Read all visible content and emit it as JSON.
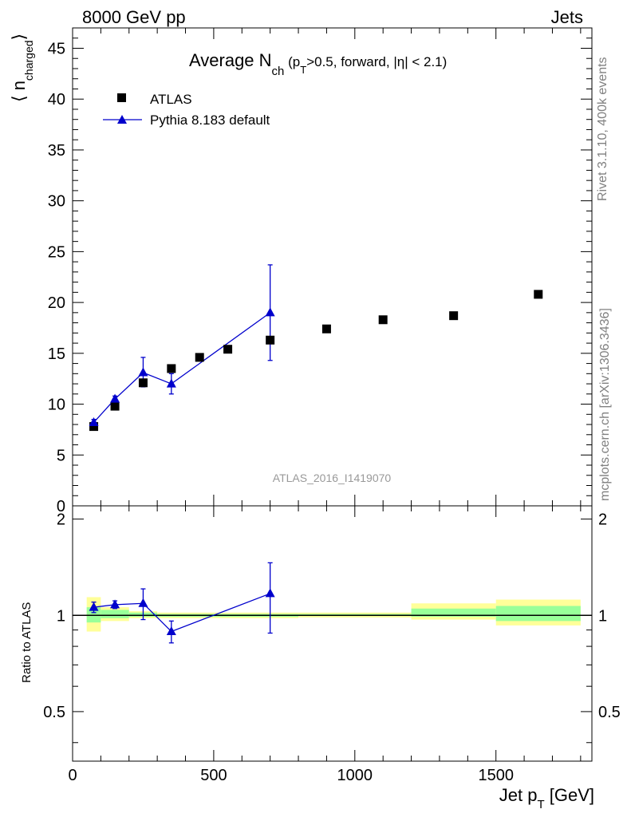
{
  "header": {
    "top_left": "8000 GeV pp",
    "top_right": "Jets",
    "rivet_label": "Rivet 3.1.10,  400k events",
    "mcplots_label": "mcplots.cern.ch [arXiv:1306.3436]",
    "analysis_id": "ATLAS_2016_I1419070"
  },
  "main_plot": {
    "title_main": "Average N",
    "title_sub": "ch",
    "title_rest": " (p",
    "title_rest_sub": "T",
    "title_tail": ">0.5, forward, |η| < 2.1)",
    "ylabel": "⟨ n",
    "ylabel_sub": "charged",
    "ylabel_close": "⟩",
    "ylim": [
      0,
      47
    ],
    "yticks": [
      0,
      5,
      10,
      15,
      20,
      25,
      30,
      35,
      40,
      45
    ],
    "ytick_labels": [
      "0",
      "5",
      "10",
      "15",
      "20",
      "25",
      "30",
      "35",
      "40",
      "45"
    ]
  },
  "ratio_plot": {
    "ylabel": "Ratio to ATLAS",
    "ylim": [
      0.35,
      2.2
    ],
    "yticks": [
      0.5,
      1,
      2
    ],
    "ytick_labels": [
      "0.5",
      "1",
      "2"
    ]
  },
  "xaxis": {
    "label_main": "Jet p",
    "label_sub": "T",
    "label_unit": " [GeV]",
    "xlim": [
      0,
      1840
    ],
    "xticks": [
      0,
      500,
      1000,
      1500
    ],
    "xtick_labels": [
      "0",
      "500",
      "1000",
      "1500"
    ]
  },
  "chart_data": {
    "type": "scatter",
    "title": "Average N_ch (p_T>0.5, forward, |η| < 2.1)",
    "xlabel": "Jet p_T [GeV]",
    "ylabel": "⟨ n_charged ⟩",
    "series": [
      {
        "name": "ATLAS",
        "marker": "square",
        "color": "#000000",
        "points": [
          {
            "x": 75,
            "y": 7.8,
            "xlo": 50,
            "xhi": 100
          },
          {
            "x": 150,
            "y": 9.8,
            "xlo": 100,
            "xhi": 200
          },
          {
            "x": 250,
            "y": 12.1,
            "xlo": 200,
            "xhi": 300
          },
          {
            "x": 350,
            "y": 13.5,
            "xlo": 300,
            "xhi": 400
          },
          {
            "x": 450,
            "y": 14.6,
            "xlo": 400,
            "xhi": 500
          },
          {
            "x": 550,
            "y": 15.4,
            "xlo": 500,
            "xhi": 600
          },
          {
            "x": 700,
            "y": 16.3,
            "xlo": 600,
            "xhi": 800
          },
          {
            "x": 900,
            "y": 17.4,
            "xlo": 800,
            "xhi": 1000
          },
          {
            "x": 1100,
            "y": 18.3,
            "xlo": 1000,
            "xhi": 1200
          },
          {
            "x": 1350,
            "y": 18.7,
            "xlo": 1200,
            "xhi": 1500
          },
          {
            "x": 1650,
            "y": 20.8,
            "xlo": 1500,
            "xhi": 1800
          }
        ]
      },
      {
        "name": "Pythia 8.183 default",
        "marker": "triangle",
        "color": "#0000cc",
        "points": [
          {
            "x": 75,
            "y": 8.2,
            "ylo": 7.9,
            "yhi": 8.5
          },
          {
            "x": 150,
            "y": 10.5,
            "ylo": 10.2,
            "yhi": 10.8
          },
          {
            "x": 250,
            "y": 13.1,
            "ylo": 11.7,
            "yhi": 14.6
          },
          {
            "x": 350,
            "y": 12.0,
            "ylo": 11.0,
            "yhi": 13.0
          },
          {
            "x": 700,
            "y": 19.0,
            "ylo": 14.3,
            "yhi": 23.7
          }
        ]
      }
    ],
    "ratio": {
      "ylabel": "Ratio to ATLAS",
      "reference_line": 1,
      "pythia": [
        {
          "x": 75,
          "y": 1.06,
          "ylo": 1.02,
          "yhi": 1.1
        },
        {
          "x": 150,
          "y": 1.08,
          "ylo": 1.05,
          "yhi": 1.11
        },
        {
          "x": 250,
          "y": 1.09,
          "ylo": 0.97,
          "yhi": 1.21
        },
        {
          "x": 350,
          "y": 0.89,
          "ylo": 0.82,
          "yhi": 0.96
        },
        {
          "x": 700,
          "y": 1.17,
          "ylo": 0.88,
          "yhi": 1.46
        }
      ],
      "bands": [
        {
          "xlo": 50,
          "xhi": 100,
          "green_lo": 0.95,
          "green_hi": 1.06,
          "yellow_lo": 0.89,
          "yellow_hi": 1.14
        },
        {
          "xlo": 100,
          "xhi": 200,
          "green_lo": 0.98,
          "green_hi": 1.04,
          "yellow_lo": 0.96,
          "yellow_hi": 1.06
        },
        {
          "xlo": 200,
          "xhi": 300,
          "green_lo": 0.99,
          "green_hi": 1.02,
          "yellow_lo": 0.98,
          "yellow_hi": 1.03
        },
        {
          "xlo": 300,
          "xhi": 800,
          "green_lo": 0.99,
          "green_hi": 1.01,
          "yellow_lo": 0.98,
          "yellow_hi": 1.02
        },
        {
          "xlo": 800,
          "xhi": 1200,
          "green_lo": 0.995,
          "green_hi": 1.01,
          "yellow_lo": 0.985,
          "yellow_hi": 1.02
        },
        {
          "xlo": 1200,
          "xhi": 1500,
          "green_lo": 0.99,
          "green_hi": 1.05,
          "yellow_lo": 0.97,
          "yellow_hi": 1.09
        },
        {
          "xlo": 1500,
          "xhi": 1800,
          "green_lo": 0.96,
          "green_hi": 1.07,
          "yellow_lo": 0.93,
          "yellow_hi": 1.12
        }
      ]
    }
  }
}
